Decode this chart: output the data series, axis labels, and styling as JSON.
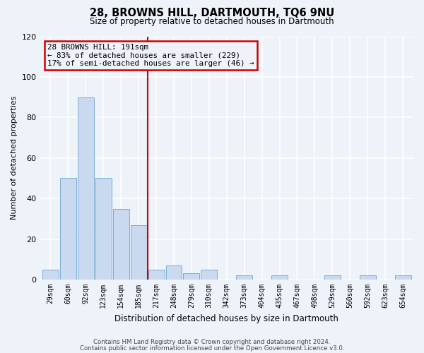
{
  "title": "28, BROWNS HILL, DARTMOUTH, TQ6 9NU",
  "subtitle": "Size of property relative to detached houses in Dartmouth",
  "xlabel": "Distribution of detached houses by size in Dartmouth",
  "ylabel": "Number of detached properties",
  "bin_labels": [
    "29sqm",
    "60sqm",
    "92sqm",
    "123sqm",
    "154sqm",
    "185sqm",
    "217sqm",
    "248sqm",
    "279sqm",
    "310sqm",
    "342sqm",
    "373sqm",
    "404sqm",
    "435sqm",
    "467sqm",
    "498sqm",
    "529sqm",
    "560sqm",
    "592sqm",
    "623sqm",
    "654sqm"
  ],
  "bar_values": [
    5,
    50,
    90,
    50,
    35,
    27,
    5,
    7,
    3,
    5,
    0,
    2,
    0,
    2,
    0,
    0,
    2,
    0,
    2,
    0,
    2
  ],
  "bar_color": "#c9d9f0",
  "bar_edgecolor": "#7bafd4",
  "vline_color": "#cc0000",
  "annotation_text": "28 BROWNS HILL: 191sqm\n← 83% of detached houses are smaller (229)\n17% of semi-detached houses are larger (46) →",
  "annotation_box_edgecolor": "#cc0000",
  "ylim": [
    0,
    120
  ],
  "yticks": [
    0,
    20,
    40,
    60,
    80,
    100,
    120
  ],
  "footer_line1": "Contains HM Land Registry data © Crown copyright and database right 2024.",
  "footer_line2": "Contains public sector information licensed under the Open Government Licence v3.0.",
  "background_color": "#eef2f9",
  "grid_color": "#ffffff"
}
